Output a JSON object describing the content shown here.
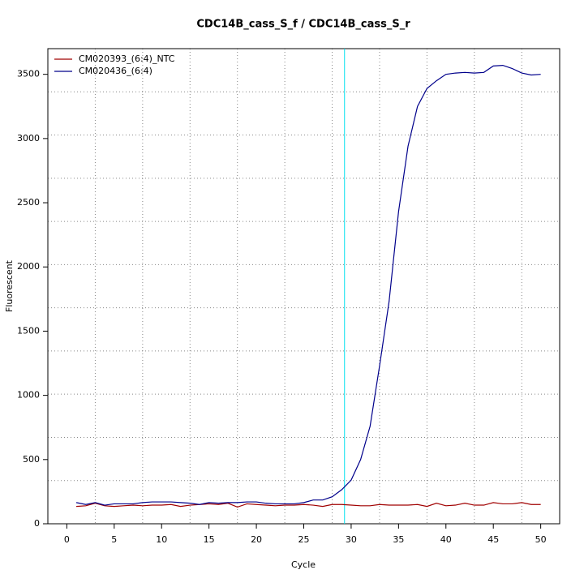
{
  "chart_data": {
    "type": "line",
    "title": "CDC14B_cass_S_f / CDC14B_cass_S_r",
    "x_label": "Cycle",
    "y_label": "Fluorescent",
    "x": [
      1,
      2,
      3,
      4,
      5,
      6,
      7,
      8,
      9,
      10,
      11,
      12,
      13,
      14,
      15,
      16,
      17,
      18,
      19,
      20,
      21,
      22,
      23,
      24,
      25,
      26,
      27,
      28,
      29,
      30,
      31,
      32,
      33,
      34,
      35,
      36,
      37,
      38,
      39,
      40,
      41,
      42,
      43,
      44,
      45,
      46,
      47,
      48,
      49,
      50
    ],
    "series": [
      {
        "name": "CM020393_(6:4)_NTC",
        "color": "#a00000",
        "values": [
          135,
          140,
          160,
          140,
          135,
          140,
          145,
          140,
          145,
          145,
          150,
          135,
          145,
          150,
          155,
          150,
          160,
          130,
          155,
          150,
          145,
          140,
          145,
          145,
          150,
          145,
          135,
          150,
          150,
          145,
          140,
          140,
          150,
          145,
          145,
          145,
          150,
          135,
          160,
          140,
          145,
          160,
          145,
          145,
          165,
          155,
          155,
          165,
          150,
          150
        ]
      },
      {
        "name": "CM020436_(6:4)",
        "color": "#00008b",
        "values": [
          165,
          150,
          165,
          145,
          155,
          155,
          155,
          165,
          170,
          170,
          170,
          165,
          160,
          150,
          165,
          160,
          165,
          165,
          170,
          170,
          160,
          155,
          155,
          155,
          165,
          185,
          185,
          210,
          265,
          340,
          500,
          760,
          1230,
          1730,
          2430,
          2940,
          3250,
          3390,
          3450,
          3500,
          3510,
          3515,
          3510,
          3515,
          3565,
          3570,
          3545,
          3510,
          3495,
          3500
        ]
      }
    ],
    "vline": {
      "x": 29.3,
      "color": "#00e0ee"
    },
    "xlim": [
      -2,
      52
    ],
    "ylim": [
      0,
      3700
    ],
    "xticks": [
      0,
      5,
      10,
      15,
      20,
      25,
      30,
      35,
      40,
      45,
      50
    ],
    "yticks": [
      0,
      500,
      1000,
      1500,
      2000,
      2500,
      3000,
      3500
    ],
    "grid": true,
    "legend": "top-left"
  }
}
